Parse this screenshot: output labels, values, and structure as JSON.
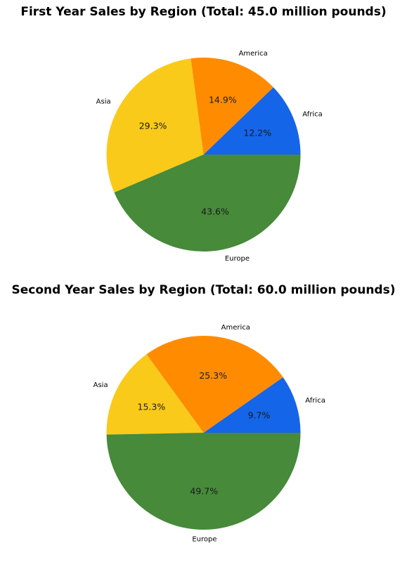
{
  "chart_data": [
    {
      "type": "pie",
      "title": "First Year Sales by Region (Total: 45.0 million pounds)",
      "labels": [
        "Africa",
        "America",
        "Asia",
        "Europe"
      ],
      "percent_labels": [
        "12.2%",
        "14.9%",
        "29.3%",
        "43.6%"
      ],
      "values": [
        12.2,
        14.9,
        29.3,
        43.6
      ],
      "colors": [
        "#1565e8",
        "#ff8c00",
        "#f9ca1a",
        "#468a3a"
      ],
      "start_angle": 0,
      "direction": "counterclockwise"
    },
    {
      "type": "pie",
      "title": "Second Year Sales by Region (Total: 60.0 million pounds)",
      "labels": [
        "Africa",
        "America",
        "Asia",
        "Europe"
      ],
      "percent_labels": [
        "9.7%",
        "25.3%",
        "15.3%",
        "49.7%"
      ],
      "values": [
        9.7,
        25.3,
        15.3,
        49.7
      ],
      "colors": [
        "#1565e8",
        "#ff8c00",
        "#f9ca1a",
        "#468a3a"
      ],
      "start_angle": 0,
      "direction": "counterclockwise"
    }
  ]
}
